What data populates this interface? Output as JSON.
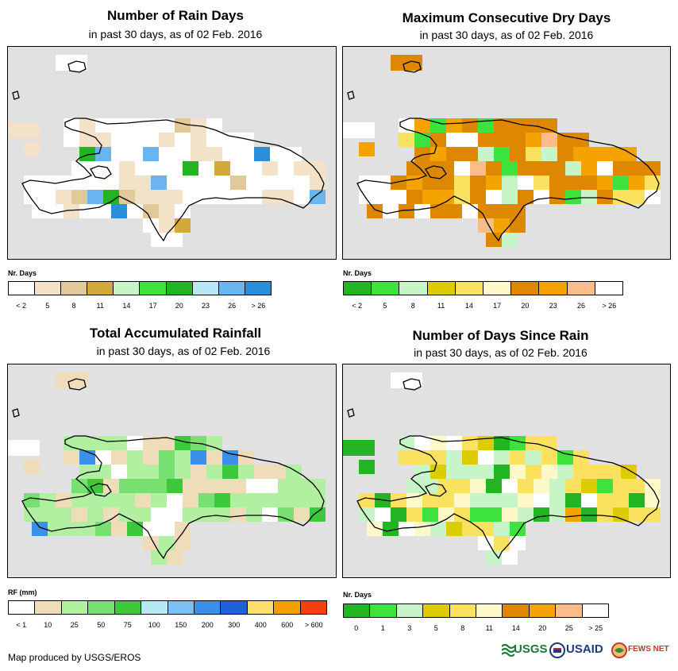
{
  "panels": [
    {
      "title": "Number of Rain Days",
      "subtitle": "in past 30 days, as of 02 Feb. 2016",
      "legend_title": "Nr. Days",
      "legend_colors": [
        "#ffffff",
        "#f3e2c7",
        "#e2c99a",
        "#d4a93c",
        "#c8f5c8",
        "#3ee23e",
        "#22b422",
        "#b8e8f5",
        "#6ab4f0",
        "#2a8ed8"
      ],
      "legend_labels": [
        "< 2",
        "5",
        "8",
        "11",
        "14",
        "17",
        "20",
        "23",
        "26",
        "> 26"
      ]
    },
    {
      "title": "Maximum Consecutive Dry Days",
      "subtitle": "in past 30 days, as of 02 Feb. 2016",
      "legend_title": "Nr. Days",
      "legend_colors": [
        "#22b422",
        "#3ee23e",
        "#c8f5c8",
        "#ddcc00",
        "#fbe160",
        "#fff8c8",
        "#dd8800",
        "#f4a300",
        "#fbbc8c",
        "#ffffff"
      ],
      "legend_labels": [
        "< 2",
        "5",
        "8",
        "11",
        "14",
        "17",
        "20",
        "23",
        "26",
        "> 26"
      ]
    },
    {
      "title": "Total Accumulated Rainfall",
      "subtitle": "in past 30 days, as of 02 Feb. 2016",
      "legend_title": "RF (mm)",
      "legend_colors": [
        "#ffffff",
        "#efdcb8",
        "#b0f0a0",
        "#78e070",
        "#3cca3c",
        "#b8e8f5",
        "#7ec0f5",
        "#3a90e8",
        "#2060d8",
        "#fbe070",
        "#f4a000",
        "#f44010"
      ],
      "legend_labels": [
        "< 1",
        "10",
        "25",
        "50",
        "75",
        "100",
        "150",
        "200",
        "300",
        "400",
        "600",
        "> 600"
      ]
    },
    {
      "title": "Number of Days Since Rain",
      "subtitle": "in past 30 days, as of 02 Feb. 2016",
      "legend_title": "Nr. Days",
      "legend_colors": [
        "#22b422",
        "#3ee23e",
        "#c8f5c8",
        "#ddcc00",
        "#fbe160",
        "#fff8c8",
        "#dd8800",
        "#f4a300",
        "#fbbc8c",
        "#ffffff"
      ],
      "legend_labels": [
        "0",
        "1",
        "3",
        "5",
        "8",
        "11",
        "14",
        "20",
        "25",
        "> 25"
      ]
    }
  ],
  "footer": {
    "credit": "Map produced by USGS/EROS"
  },
  "logos": {
    "usgs": "USGS",
    "usaid": "USAID",
    "fewsnet": "FEWS NET"
  }
}
